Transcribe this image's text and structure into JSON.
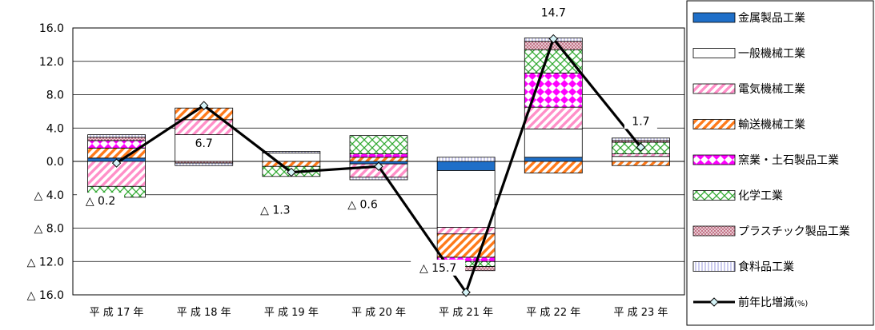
{
  "chart_data": {
    "type": "bar",
    "subtype": "stacked-bar-with-line",
    "title": "",
    "xlabel": "",
    "ylabel": "",
    "ylim": [
      -16,
      16
    ],
    "yticks": [
      16,
      12,
      8,
      4,
      0,
      -4,
      -8,
      -12,
      -16
    ],
    "ytick_labels": [
      "16.0",
      "12.0",
      "8.0",
      "4.0",
      "0.0",
      "△ 4.0",
      "△ 8.0",
      "△ 12.0",
      "△ 16.0"
    ],
    "grid": "horizontal",
    "legend_position": "right",
    "categories": [
      "平 成 17 年",
      "平 成 18 年",
      "平 成 19 年",
      "平 成 20 年",
      "平 成 21 年",
      "平 成 22 年",
      "平 成 23 年"
    ],
    "series": [
      {
        "name": "金属製品工業",
        "color": "#1f6fc8",
        "pattern": "solid",
        "values": [
          0.4,
          0.0,
          0.0,
          -0.3,
          -1.1,
          0.5,
          0.0
        ]
      },
      {
        "name": "一般機械工業",
        "color": "#ffffff",
        "pattern": "none",
        "values": [
          0.0,
          3.2,
          1.0,
          0.0,
          -6.8,
          3.4,
          0.6
        ]
      },
      {
        "name": "電気機械工業",
        "color": "#ff8fc8",
        "pattern": "diagonal",
        "values": [
          -3.0,
          1.8,
          0.0,
          -1.6,
          -0.8,
          2.6,
          0.3
        ]
      },
      {
        "name": "輸送機械工業",
        "color": "#ff7a1a",
        "pattern": "diagonal",
        "values": [
          1.2,
          1.4,
          -0.6,
          0.5,
          -2.8,
          -1.4,
          -0.5
        ]
      },
      {
        "name": "窯業・土石製品工業",
        "color": "#ff00ff",
        "pattern": "diamond",
        "values": [
          0.9,
          0.0,
          0.0,
          0.4,
          -0.5,
          4.1,
          0.0
        ]
      },
      {
        "name": "化学工業",
        "color": "#33aa33",
        "pattern": "crosshatch",
        "values": [
          -1.3,
          0.0,
          -1.2,
          2.2,
          -0.6,
          2.8,
          1.4
        ]
      },
      {
        "name": "プラスチック製品工業",
        "color": "#c4788a",
        "pattern": "dots",
        "values": [
          0.4,
          -0.2,
          0.0,
          0.0,
          -0.5,
          1.0,
          0.2
        ]
      },
      {
        "name": "食料品工業",
        "color": "#9999dd",
        "pattern": "vertical",
        "values": [
          0.3,
          -0.3,
          0.2,
          -0.3,
          0.5,
          0.4,
          0.3
        ]
      }
    ],
    "line_series": {
      "name": "前年比増減",
      "unit_label": "(%)",
      "values": [
        -0.2,
        6.7,
        -1.3,
        -0.6,
        -15.7,
        14.7,
        1.7
      ],
      "labels": [
        "△ 0.2",
        "6.7",
        "△ 1.3",
        "△ 0.6",
        "△ 15.7",
        "14.7",
        "1.7"
      ]
    }
  }
}
